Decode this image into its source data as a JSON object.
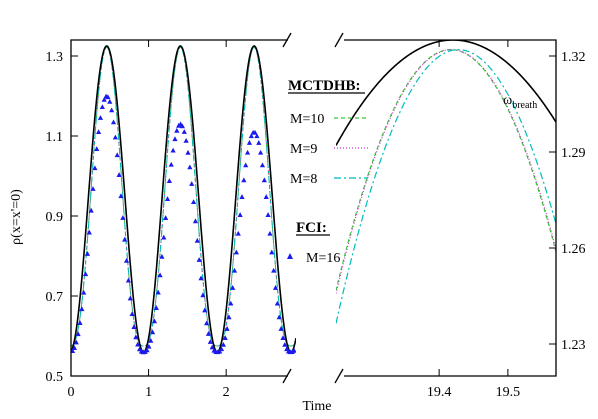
{
  "chart_data": {
    "type": "line",
    "ylabel": "ρ(x=x'=0)",
    "xlabel": "Time",
    "annotation": {
      "base": "ω",
      "sub": "breath"
    },
    "colors": {
      "analytic": "#000000",
      "m10": "#33cc33",
      "m9": "#cc33cc",
      "m8": "#00bbbb",
      "fci": "#1a1aee"
    },
    "legend": {
      "mctdhb_title": "MCTDHB:",
      "fci_title": "FCI:",
      "entries": [
        {
          "key": "m10",
          "label": "M=10",
          "style": "dash"
        },
        {
          "key": "m9",
          "label": "M=9",
          "style": "dot"
        },
        {
          "key": "m8",
          "label": "M=8",
          "style": "dashdot"
        },
        {
          "key": "fci",
          "label": "M=16",
          "style": "triangle"
        }
      ]
    },
    "panels": [
      {
        "name": "left",
        "xlim": [
          0,
          2.9
        ],
        "ylim": [
          0.5,
          1.34
        ],
        "xticks": [
          0,
          1,
          2
        ],
        "xtick_labels": [
          "0",
          "1",
          "2"
        ],
        "yticks": [
          0.5,
          0.7,
          0.9,
          1.1,
          1.3
        ],
        "ytick_labels": [
          "0.5",
          "0.7",
          "0.9",
          "1.1",
          "1.3"
        ],
        "yaxis_side": "left"
      },
      {
        "name": "right",
        "xlim": [
          19.25,
          19.57
        ],
        "ylim": [
          1.22,
          1.325
        ],
        "xticks": [
          19.4,
          19.5
        ],
        "xtick_labels": [
          "19.4",
          "19.5"
        ],
        "yticks": [
          1.23,
          1.26,
          1.29,
          1.32
        ],
        "ytick_labels": [
          "1.23",
          "1.26",
          "1.29",
          "1.32"
        ],
        "yaxis_side": "right"
      }
    ],
    "analytic": {
      "period": 0.95,
      "peak_time": 0.46,
      "min": 0.56,
      "max": 1.325,
      "right_peak_time": 19.42,
      "right_curvature": 1.14
    },
    "mctdhb": {
      "min": 0.575,
      "max": 1.322,
      "shape_power": 1.35,
      "right_peaks": {
        "m10": 19.417,
        "m9": 19.418,
        "m8": 19.428
      },
      "right_curvature": 2.7
    },
    "fci": {
      "peaks": [
        1.2,
        1.13,
        1.11
      ],
      "min": 0.56,
      "dt": 0.024
    }
  }
}
